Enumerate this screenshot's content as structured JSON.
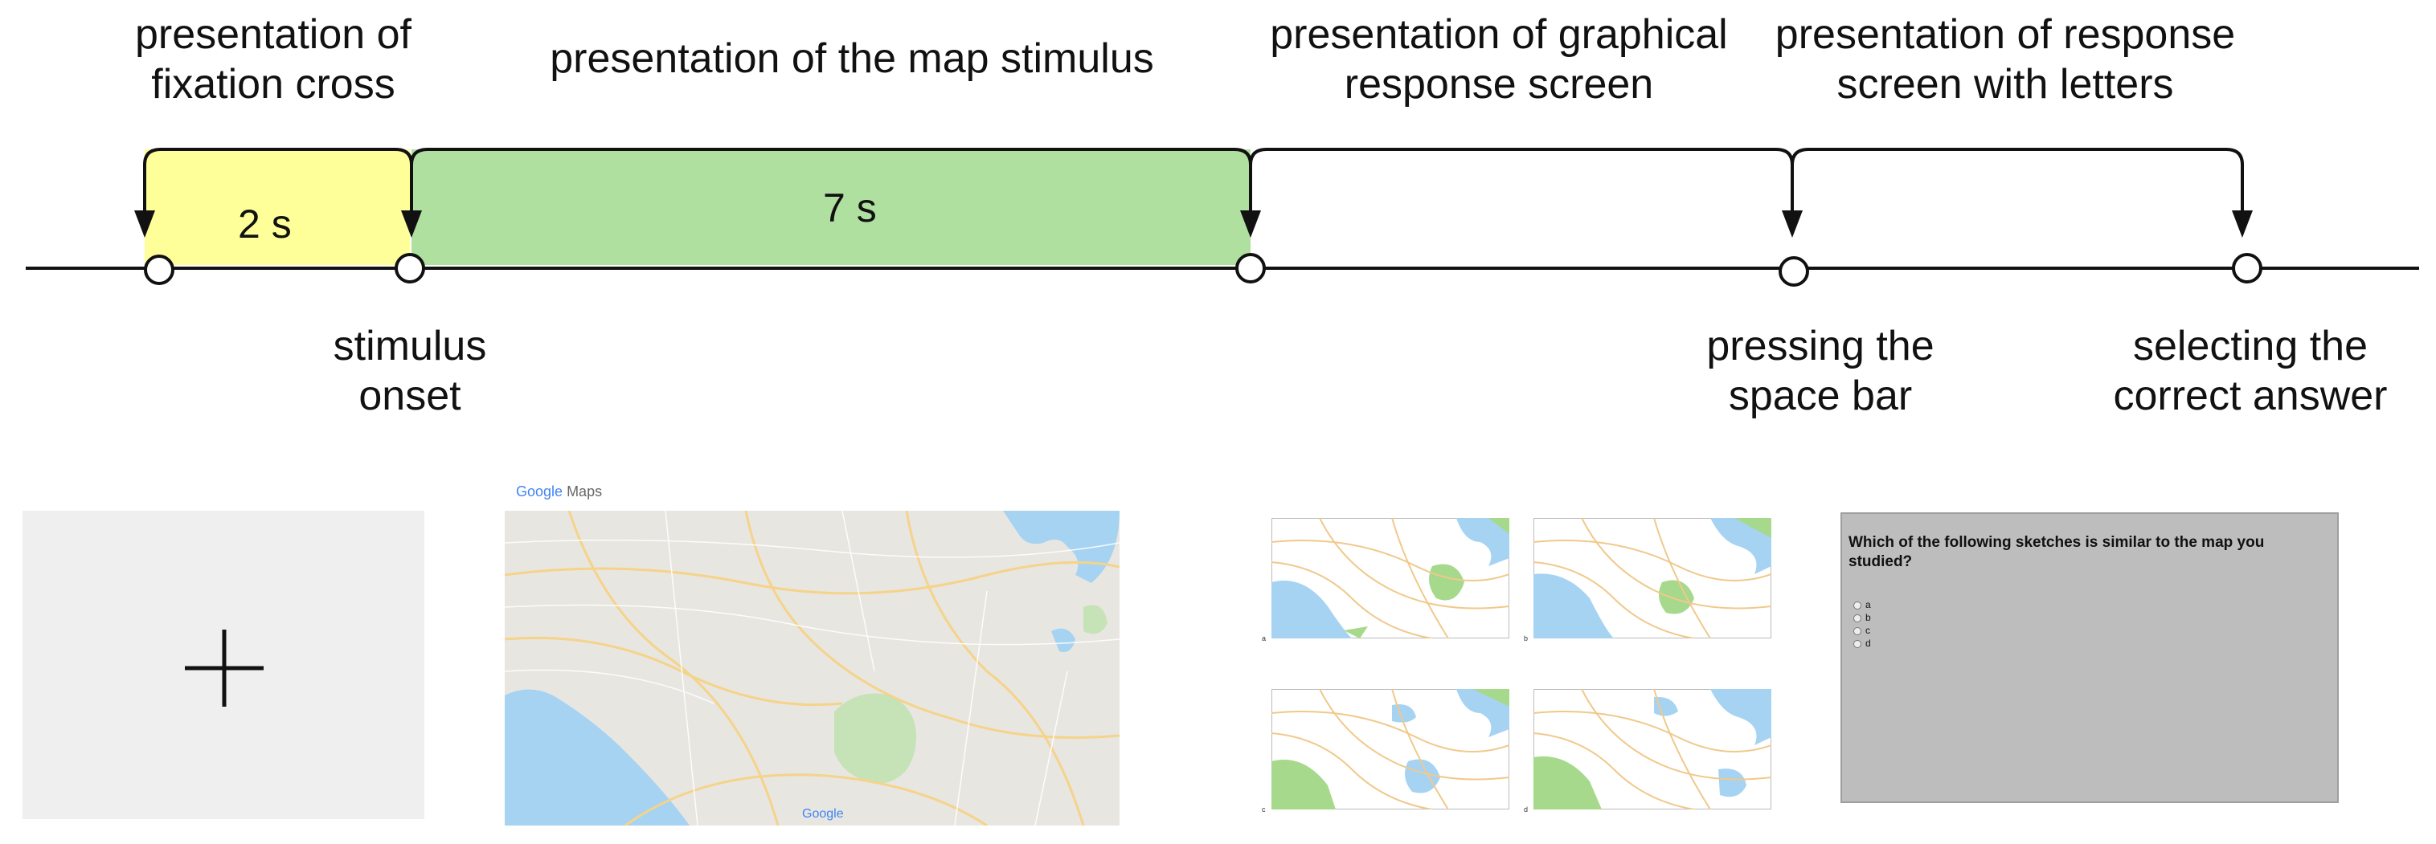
{
  "labels": {
    "fixation_top": "presentation of\nfixation cross",
    "map_top": "presentation of the map stimulus",
    "graphical_top": "presentation of graphical\nresponse screen",
    "letters_top": "presentation of response\nscreen with letters",
    "stimulus_onset": "stimulus\nonset",
    "space_bar": "pressing the\nspace bar",
    "correct_answer": "selecting the\ncorrect answer"
  },
  "durations": {
    "fixation": "2 s",
    "map": "7 s"
  },
  "colors": {
    "fixation_fill": "#ffff99",
    "map_fill": "#b0e0a0",
    "line": "#111111"
  },
  "map_panel": {
    "logo_google": "Google",
    "logo_maps": "Maps",
    "watermark": "Google"
  },
  "sketches": {
    "tags": [
      "a",
      "b",
      "c",
      "d"
    ]
  },
  "response_screen": {
    "question": "Which of the following sketches is similar to the map you studied?",
    "options": [
      "a",
      "b",
      "c",
      "d"
    ]
  }
}
